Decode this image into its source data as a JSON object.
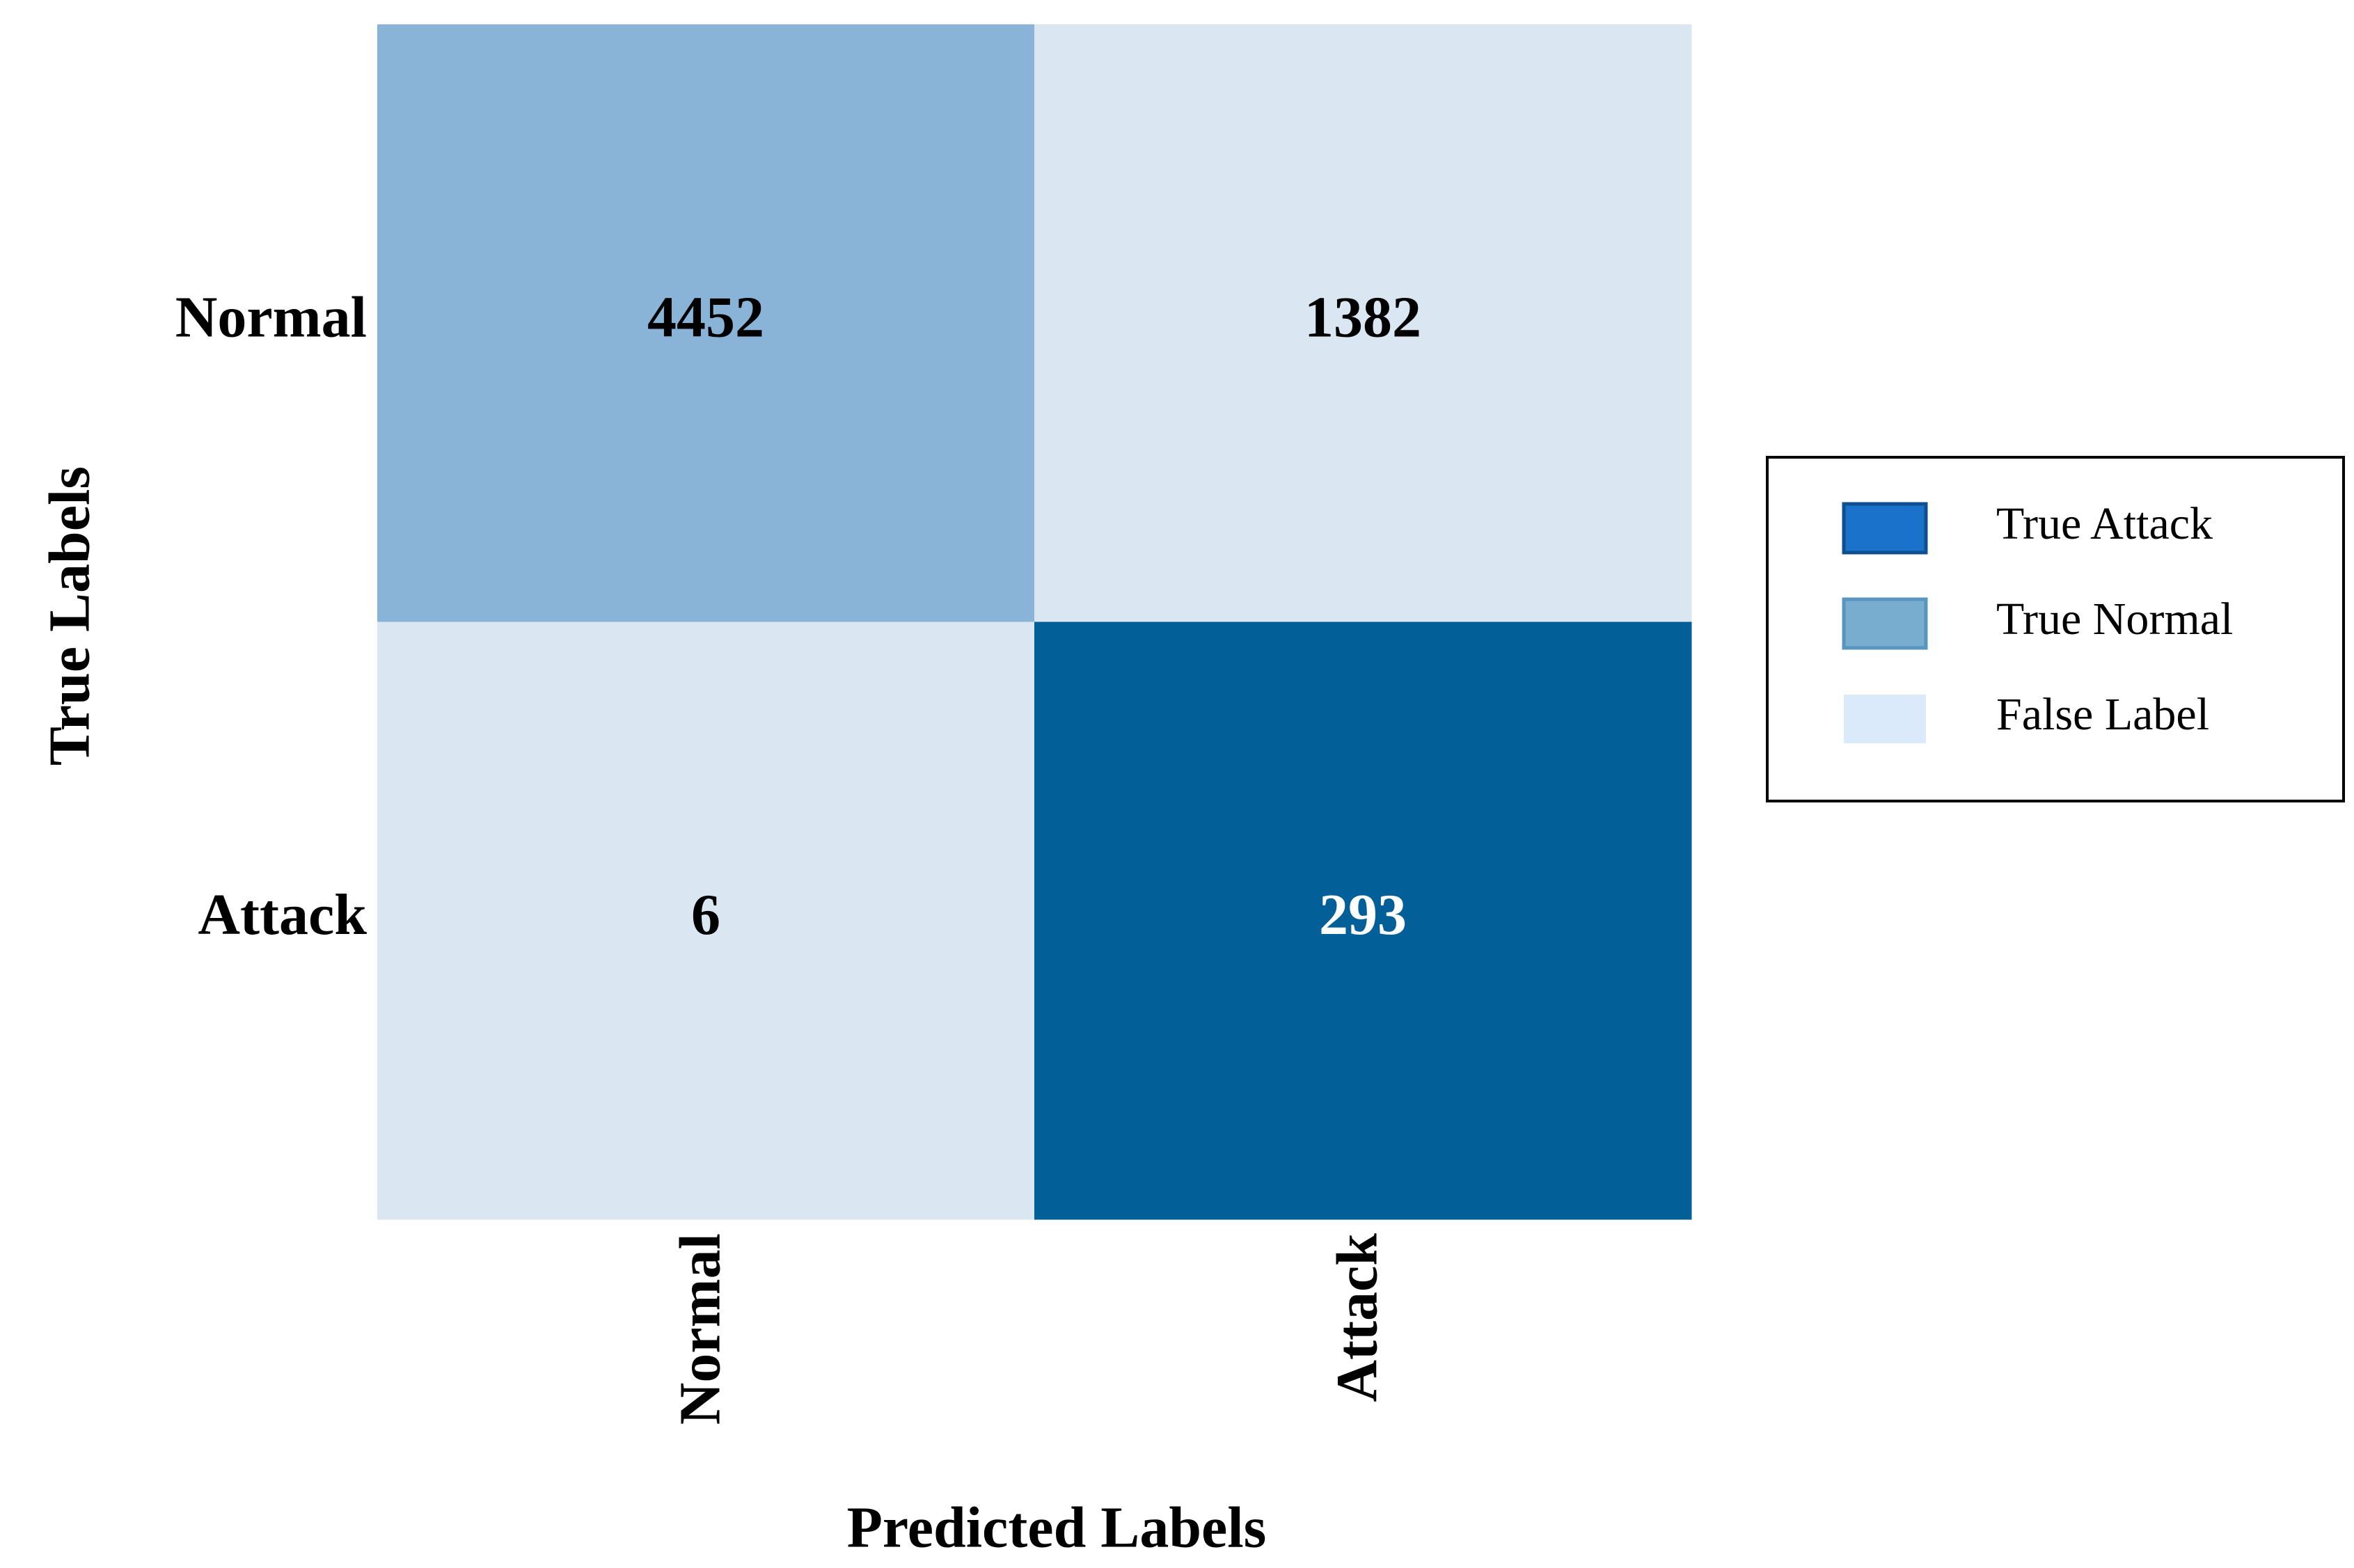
{
  "chart_data": {
    "type": "heatmap",
    "x_label": "Predicted Labels",
    "y_label": "True Labels",
    "columns": [
      "Normal",
      "Attack"
    ],
    "rows": [
      "Normal",
      "Attack"
    ],
    "values": [
      [
        4452,
        1382
      ],
      [
        6,
        293
      ]
    ],
    "cell_colors": [
      [
        "#8ab3d8",
        "#dae7f2"
      ],
      [
        "#dae7f2",
        "#035f97"
      ]
    ],
    "legend": [
      {
        "name": "True Attack",
        "color": "#1a73c9"
      },
      {
        "name": "True Normal",
        "color": "#78adcf"
      },
      {
        "name": "False Label",
        "color": "#dbeafb"
      }
    ]
  }
}
